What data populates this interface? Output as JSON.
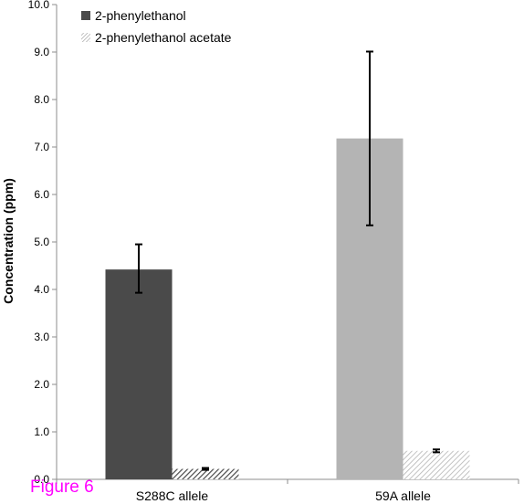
{
  "chart_data": {
    "type": "bar",
    "title": "",
    "xlabel": "",
    "ylabel": "Concentration (ppm)",
    "ylim": [
      0,
      10
    ],
    "yticks": [
      "0.0",
      "1.0",
      "2.0",
      "3.0",
      "4.0",
      "5.0",
      "6.0",
      "7.0",
      "8.0",
      "9.0",
      "10.0"
    ],
    "categories": [
      "S288C allele",
      "59A allele"
    ],
    "series": [
      {
        "name": "2-phenylethanol",
        "values": [
          4.42,
          7.18
        ],
        "error": [
          [
            3.93,
            4.95
          ],
          [
            5.35,
            9.01
          ]
        ],
        "colors": [
          "#4a4a4a",
          "#b4b4b4"
        ],
        "pattern": "solid"
      },
      {
        "name": "2-phenylethanol acetate",
        "values": [
          0.22,
          0.6
        ],
        "error": [
          [
            0.2,
            0.24
          ],
          [
            0.57,
            0.63
          ]
        ],
        "colors": [
          "#4a4a4a",
          "#b4b4b4"
        ],
        "pattern": "hatched"
      }
    ],
    "legend_position": "top-left",
    "grid": false
  },
  "figure_label": "Figure 6",
  "colors": {
    "figure_label": "#ff00ff"
  }
}
